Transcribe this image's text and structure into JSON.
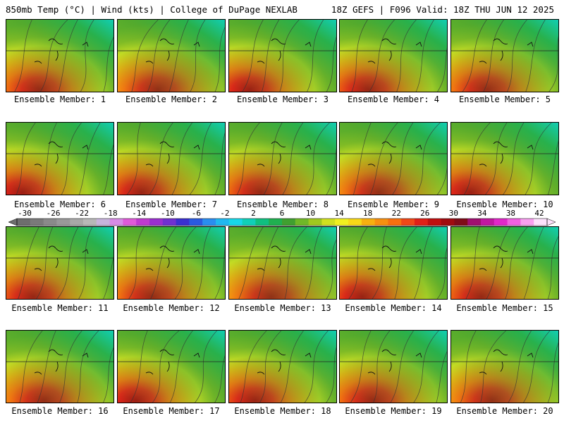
{
  "header": {
    "left": "850mb Temp (°C) | Wind (kts) | College of DuPage NEXLAB",
    "right": "18Z GEFS | F096 Valid: 18Z THU JUN 12 2025"
  },
  "panels": [
    {
      "label": "Ensemble Member: 1"
    },
    {
      "label": "Ensemble Member: 2"
    },
    {
      "label": "Ensemble Member: 3"
    },
    {
      "label": "Ensemble Member: 4"
    },
    {
      "label": "Ensemble Member: 5"
    },
    {
      "label": "Ensemble Member: 6"
    },
    {
      "label": "Ensemble Member: 7"
    },
    {
      "label": "Ensemble Member: 8"
    },
    {
      "label": "Ensemble Member: 9"
    },
    {
      "label": "Ensemble Member: 10"
    },
    {
      "label": "Ensemble Member: 11"
    },
    {
      "label": "Ensemble Member: 12"
    },
    {
      "label": "Ensemble Member: 13"
    },
    {
      "label": "Ensemble Member: 14"
    },
    {
      "label": "Ensemble Member: 15"
    },
    {
      "label": "Ensemble Member: 16"
    },
    {
      "label": "Ensemble Member: 17"
    },
    {
      "label": "Ensemble Member: 18"
    },
    {
      "label": "Ensemble Member: 19"
    },
    {
      "label": "Ensemble Member: 20"
    }
  ],
  "colorbar": {
    "tick_labels": [
      "-30",
      "-26",
      "-22",
      "-18",
      "-14",
      "-10",
      "-6",
      "-2",
      "2",
      "6",
      "10",
      "14",
      "18",
      "22",
      "26",
      "30",
      "34",
      "38",
      "42"
    ],
    "colors": [
      "#6e6e6e",
      "#7a7a7a",
      "#8a8a8a",
      "#999999",
      "#a8a8a8",
      "#b8b8b8",
      "#c8b4dc",
      "#d78be6",
      "#e05ad8",
      "#c03ad0",
      "#9a2fd0",
      "#7030d0",
      "#3a30d0",
      "#2a5ae0",
      "#2a8ef0",
      "#20b8f0",
      "#18d8e8",
      "#10d0b8",
      "#10c080",
      "#20b050",
      "#40a030",
      "#70b828",
      "#a0c820",
      "#d0e020",
      "#f0f020",
      "#f8d818",
      "#f8b010",
      "#f89010",
      "#f87010",
      "#f04818",
      "#e02018",
      "#c01010",
      "#a00c10",
      "#800c18",
      "#a01070",
      "#c018a0",
      "#e028c8",
      "#f060e0",
      "#f8a0f0",
      "#fce0fc"
    ]
  }
}
